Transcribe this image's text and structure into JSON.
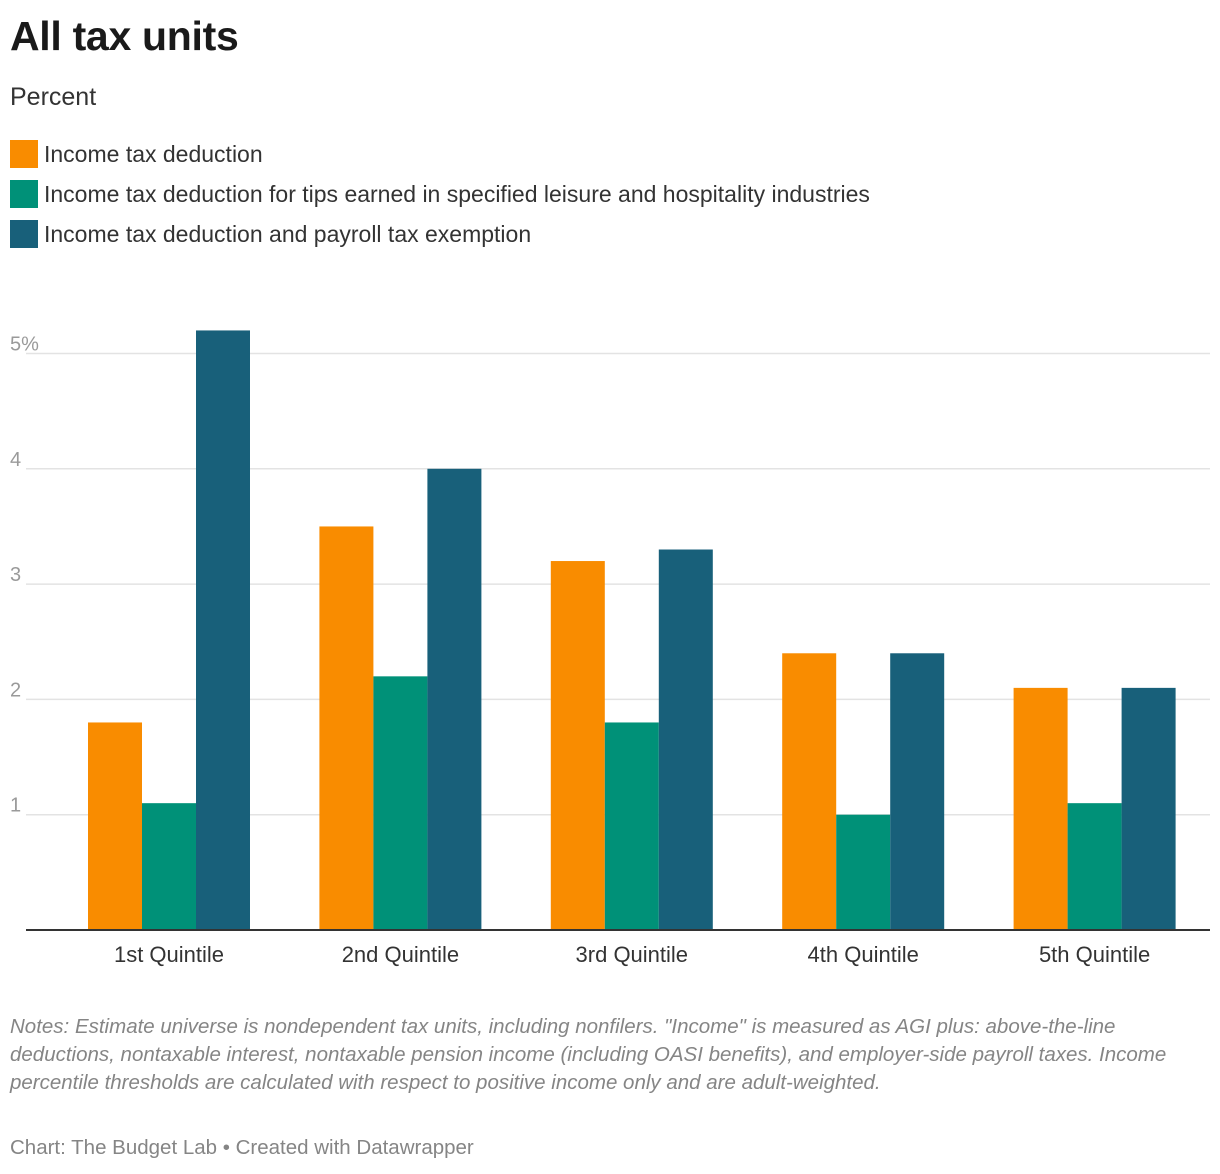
{
  "chart_data": {
    "type": "bar",
    "title": "All tax units",
    "subtitle": "Percent",
    "categories": [
      "1st Quintile",
      "2nd Quintile",
      "3rd Quintile",
      "4th Quintile",
      "5th Quintile"
    ],
    "series": [
      {
        "name": "Income tax deduction",
        "color": "#f98c00",
        "values": [
          1.8,
          3.5,
          3.2,
          2.4,
          2.1
        ]
      },
      {
        "name": "Income tax deduction for tips earned in specified leisure and hospitality industries",
        "color": "#009178",
        "values": [
          1.1,
          2.2,
          1.8,
          1.0,
          1.1
        ]
      },
      {
        "name": "Income tax deduction and payroll tax exemption",
        "color": "#18607a",
        "values": [
          5.2,
          4.0,
          3.3,
          2.4,
          2.1
        ]
      }
    ],
    "yticks": [
      {
        "value": 1,
        "label": "1"
      },
      {
        "value": 2,
        "label": "2"
      },
      {
        "value": 3,
        "label": "3"
      },
      {
        "value": 4,
        "label": "4"
      },
      {
        "value": 5,
        "label": "5%"
      }
    ],
    "ylim": [
      0,
      5.2
    ],
    "grid": true,
    "legend_position": "top-left",
    "notes": "Notes: Estimate universe is nondependent tax units, including nonfilers. \"Income\" is measured as AGI plus: above-the-line deductions, nontaxable interest, nontaxable pension income (including OASI benefits), and employer-side payroll taxes. Income percentile thresholds are calculated with respect to positive income only and are adult-weighted.",
    "credit": "Chart: The Budget Lab • Created with Datawrapper"
  }
}
